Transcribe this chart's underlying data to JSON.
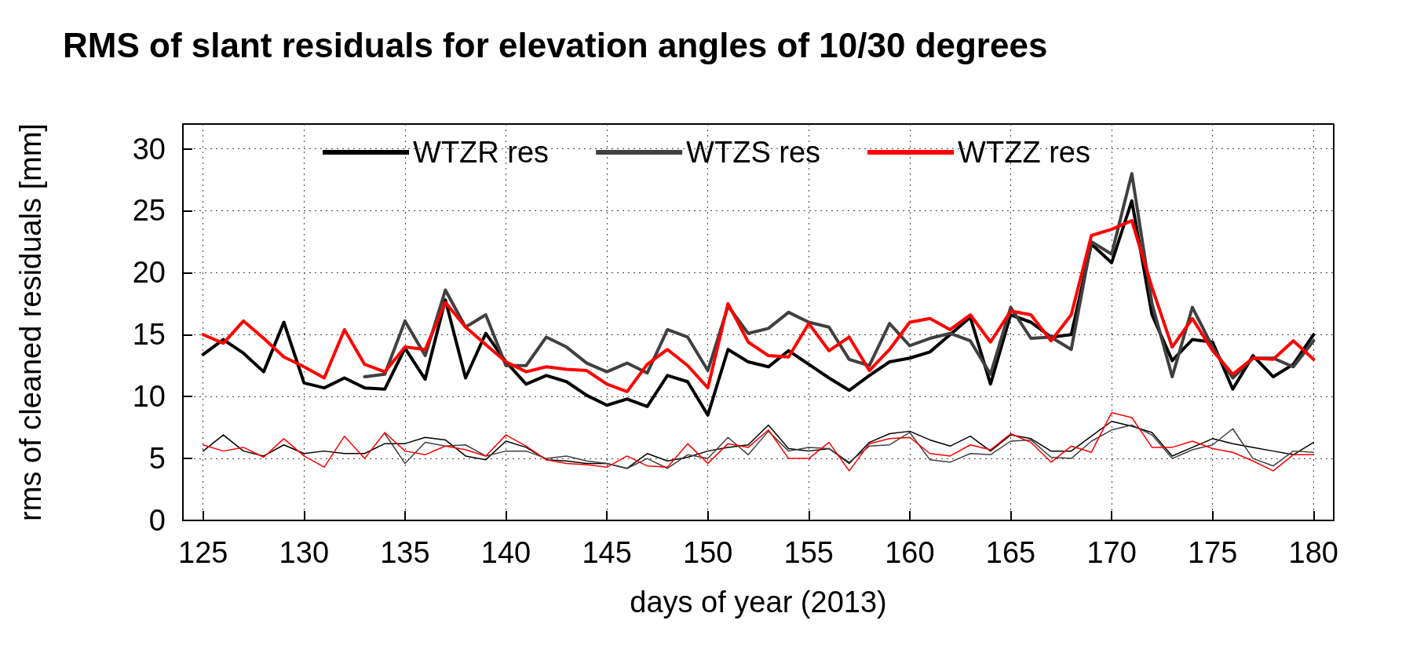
{
  "chart_data": {
    "type": "line",
    "title": "RMS of slant residuals for elevation angles of 10/30 degrees",
    "xlabel": "days of year (2013)",
    "ylabel": "rms of cleaned residuals [mm]",
    "x": [
      125,
      126,
      127,
      128,
      129,
      130,
      131,
      132,
      133,
      134,
      135,
      136,
      137,
      138,
      139,
      140,
      141,
      142,
      143,
      144,
      145,
      146,
      147,
      148,
      149,
      150,
      151,
      152,
      153,
      154,
      155,
      156,
      157,
      158,
      159,
      160,
      161,
      162,
      163,
      164,
      165,
      166,
      167,
      168,
      169,
      170,
      171,
      172,
      173,
      174,
      175,
      176,
      177,
      178,
      179,
      180
    ],
    "series": [
      {
        "name": "WTZR res",
        "color": "#000000",
        "values": [
          13.4,
          14.6,
          13.5,
          12.0,
          16.0,
          11.1,
          10.7,
          11.5,
          10.7,
          10.6,
          13.9,
          11.4,
          17.8,
          11.5,
          15.1,
          12.8,
          11.0,
          11.7,
          11.2,
          10.1,
          9.3,
          9.8,
          9.2,
          11.7,
          11.2,
          8.5,
          13.8,
          12.8,
          12.4,
          13.7,
          12.6,
          11.5,
          10.5,
          11.7,
          12.8,
          13.1,
          13.6,
          15.0,
          16.4,
          11.0,
          16.6,
          16.0,
          14.8,
          15.0,
          22.3,
          20.8,
          25.8,
          16.6,
          12.9,
          14.6,
          14.4,
          10.6,
          13.3,
          11.6,
          12.6,
          15.0
        ]
      },
      {
        "name": "WTZS res",
        "color": "#404040",
        "values": [
          null,
          null,
          null,
          null,
          null,
          null,
          null,
          null,
          11.6,
          11.8,
          16.1,
          13.3,
          18.6,
          15.6,
          16.6,
          12.5,
          12.5,
          14.8,
          14.0,
          12.7,
          12.0,
          12.7,
          11.9,
          15.4,
          14.8,
          12.1,
          17.3,
          15.1,
          15.5,
          16.8,
          16.0,
          15.6,
          13.0,
          12.5,
          15.9,
          14.1,
          14.7,
          15.1,
          14.5,
          11.8,
          17.2,
          14.7,
          14.8,
          13.8,
          22.5,
          21.5,
          28.0,
          17.5,
          11.6,
          17.2,
          14.0,
          11.5,
          13.1,
          13.1,
          12.4,
          14.5
        ]
      },
      {
        "name": "WTZZ res",
        "color": "#ff0000",
        "values": [
          15.0,
          14.3,
          16.1,
          14.7,
          13.2,
          12.4,
          11.5,
          15.4,
          12.6,
          12.0,
          14.0,
          13.8,
          17.6,
          15.6,
          14.2,
          12.8,
          12.0,
          12.4,
          12.2,
          12.1,
          11.0,
          10.4,
          12.6,
          13.8,
          12.5,
          10.7,
          17.5,
          14.4,
          13.3,
          13.2,
          15.9,
          13.7,
          14.8,
          12.1,
          13.8,
          16.0,
          16.3,
          15.4,
          16.6,
          14.4,
          16.9,
          16.6,
          14.5,
          16.6,
          23.0,
          23.5,
          24.2,
          18.8,
          14.0,
          16.3,
          13.7,
          11.8,
          13.1,
          13.0,
          14.5,
          13.0
        ]
      },
      {
        "color": "#000000",
        "values": [
          5.6,
          6.9,
          5.6,
          5.2,
          6.1,
          5.4,
          5.6,
          5.4,
          5.4,
          6.2,
          6.2,
          6.7,
          6.5,
          5.2,
          4.9,
          6.4,
          5.9,
          4.9,
          4.8,
          4.6,
          4.6,
          4.2,
          5.4,
          4.8,
          5.1,
          5.6,
          5.9,
          6.1,
          7.7,
          5.8,
          5.6,
          5.8,
          4.6,
          6.3,
          7.0,
          7.2,
          6.5,
          6.0,
          6.8,
          5.6,
          6.9,
          6.6,
          5.6,
          5.6,
          6.8,
          8.0,
          7.6,
          7.1,
          5.2,
          5.9,
          6.6,
          6.2,
          5.9,
          5.6,
          5.3,
          6.3
        ]
      },
      {
        "color": "#404040",
        "values": [
          null,
          null,
          null,
          null,
          null,
          null,
          null,
          null,
          null,
          7.0,
          4.6,
          6.3,
          6.0,
          6.1,
          5.2,
          5.6,
          5.6,
          5.0,
          5.2,
          4.8,
          4.6,
          4.2,
          5.0,
          4.2,
          5.3,
          5.0,
          6.7,
          5.3,
          7.2,
          5.6,
          5.9,
          5.8,
          4.7,
          6.0,
          6.1,
          7.1,
          4.9,
          4.7,
          5.4,
          5.3,
          6.4,
          6.5,
          5.1,
          5.0,
          6.4,
          7.3,
          7.7,
          6.9,
          5.0,
          5.7,
          6.1,
          7.4,
          5.0,
          4.4,
          5.6,
          5.5
        ]
      },
      {
        "color": "#ff0000",
        "values": [
          6.1,
          5.6,
          5.9,
          5.1,
          6.6,
          5.2,
          4.3,
          6.8,
          5.0,
          7.1,
          5.6,
          5.3,
          6.0,
          5.7,
          5.2,
          6.9,
          6.0,
          4.9,
          4.6,
          4.5,
          4.3,
          5.2,
          4.4,
          4.3,
          6.2,
          4.6,
          6.2,
          5.9,
          7.3,
          5.0,
          5.0,
          6.3,
          4.0,
          6.2,
          6.6,
          6.7,
          5.4,
          5.2,
          6.1,
          5.7,
          7.0,
          6.3,
          4.7,
          6.0,
          5.5,
          8.7,
          8.3,
          5.9,
          5.9,
          6.4,
          5.8,
          5.5,
          4.8,
          4.0,
          5.3,
          5.3
        ]
      }
    ],
    "xlim": [
      124,
      181
    ],
    "xticks": [
      125,
      130,
      135,
      140,
      145,
      150,
      155,
      160,
      165,
      170,
      175,
      180
    ],
    "ylim": [
      0,
      32
    ],
    "yticks": [
      0,
      5,
      10,
      15,
      20,
      25,
      30
    ],
    "grid": true,
    "legend": "top",
    "marker": "none",
    "line_style": "solid"
  }
}
